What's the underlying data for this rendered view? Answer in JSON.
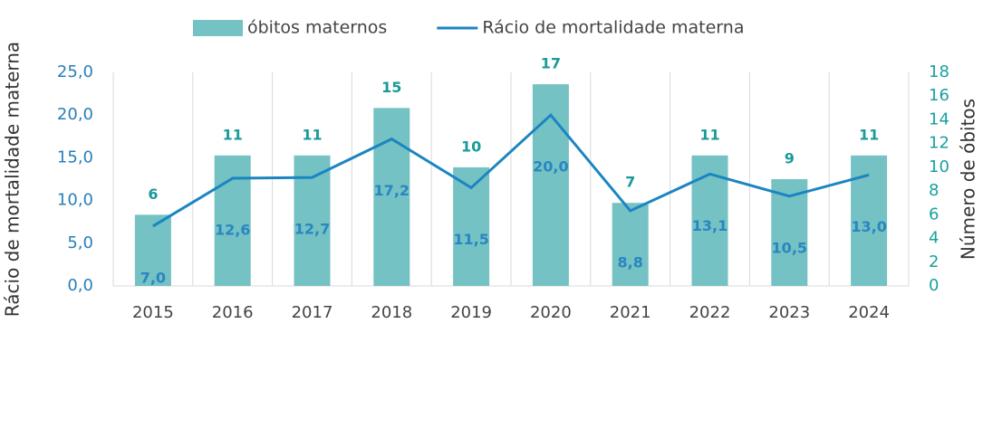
{
  "chart_data": {
    "type": "combo",
    "categories": [
      "2015",
      "2016",
      "2017",
      "2018",
      "2019",
      "2020",
      "2021",
      "2022",
      "2023",
      "2024"
    ],
    "series": [
      {
        "name": "óbitos maternos",
        "type": "bar",
        "axis": "y2",
        "color": "#74c2c3",
        "values": [
          6,
          11,
          11,
          15,
          10,
          17,
          7,
          11,
          9,
          11
        ]
      },
      {
        "name": "Rácio de mortalidade materna",
        "type": "line",
        "axis": "y",
        "color": "#1b85c2",
        "values": [
          7.0,
          12.6,
          12.7,
          17.2,
          11.5,
          20.0,
          8.8,
          13.1,
          10.5,
          13.0
        ],
        "value_labels": [
          "7,0",
          "12,6",
          "12,7",
          "17,2",
          "11,5",
          "20,0",
          "8,8",
          "13,1",
          "10,5",
          "13,0"
        ]
      }
    ],
    "y_label": "Rácio de mortalidade materna",
    "y2_label": "Número de óbitos",
    "ylim": [
      0,
      25
    ],
    "yticks": [
      {
        "value": 0,
        "label": "0,0"
      },
      {
        "value": 5,
        "label": "5,0"
      },
      {
        "value": 10,
        "label": "10,0"
      },
      {
        "value": 15,
        "label": "15,0"
      },
      {
        "value": 20,
        "label": "20,0"
      },
      {
        "value": 25,
        "label": "25,0"
      }
    ],
    "y2lim": [
      0,
      18
    ],
    "y2ticks": [
      0,
      2,
      4,
      6,
      8,
      10,
      12,
      14,
      16,
      18
    ],
    "legend": "top"
  }
}
